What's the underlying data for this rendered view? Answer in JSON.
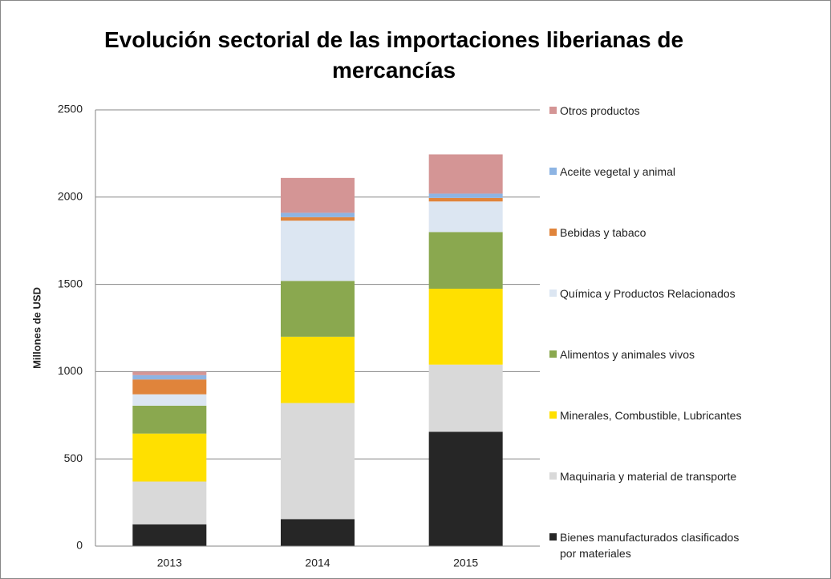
{
  "chart_data": {
    "type": "stacked_bar",
    "title": "Evolución sectorial de las importaciones liberianas de mercancías",
    "y_label": "Millones de USD",
    "categories": [
      "2013",
      "2014",
      "2015"
    ],
    "ylim": [
      0,
      2500
    ],
    "yticks": [
      0,
      500,
      1000,
      1500,
      2000,
      2500
    ],
    "grid": true,
    "legend": "right",
    "series": [
      {
        "name": "Bienes manufacturados clasificados por materiales",
        "color": "#262626",
        "values": [
          125,
          155,
          655
        ]
      },
      {
        "name": "Maquinaria y material de transporte",
        "color": "#d9d9d9",
        "values": [
          245,
          665,
          385
        ]
      },
      {
        "name": "Minerales, Combustible, Lubricantes",
        "color": "#ffe000",
        "values": [
          275,
          380,
          435
        ]
      },
      {
        "name": "Alimentos y animales vivos",
        "color": "#8aa84f",
        "values": [
          160,
          320,
          325
        ]
      },
      {
        "name": "Química y Productos Relacionados",
        "color": "#dce6f2",
        "values": [
          65,
          345,
          175
        ]
      },
      {
        "name": "Bebidas y tabaco",
        "color": "#e0843b",
        "values": [
          85,
          20,
          20
        ]
      },
      {
        "name": "Aceite vegetal y animal",
        "color": "#8db4e3",
        "values": [
          25,
          25,
          25
        ]
      },
      {
        "name": "Otros productos",
        "color": "#d49595",
        "values": [
          20,
          200,
          225
        ]
      }
    ]
  }
}
